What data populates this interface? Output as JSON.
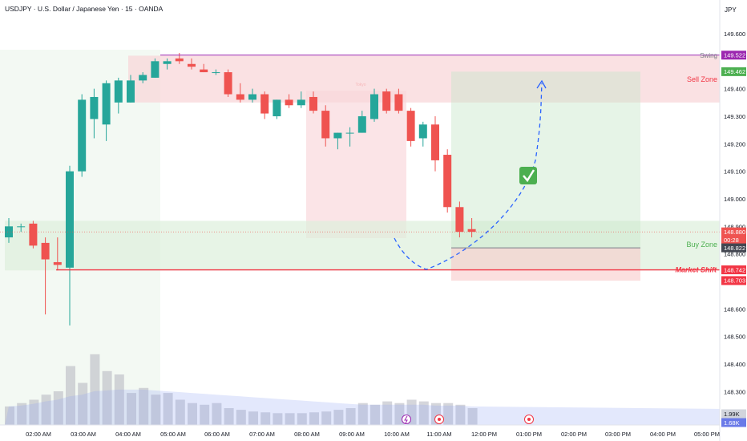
{
  "header": {
    "title": "USDJPY · U.S. Dollar / Japanese Yen · 15 · OANDA"
  },
  "currency_label": "JPY",
  "colors": {
    "up": "#26a69a",
    "down": "#ef5350",
    "sell_zone": "#f8d7d9",
    "buy_zone": "#ddefdc",
    "swing_line": "#9c27b0",
    "market_shift": "#f23645"
  },
  "chart_data": {
    "type": "candlestick",
    "ylim": [
      148.22,
      149.66
    ],
    "y_ticks": [
      "149.600",
      "149.400",
      "149.300",
      "149.200",
      "149.100",
      "149.000",
      "148.900",
      "148.800",
      "148.600",
      "148.500",
      "148.400",
      "148.300"
    ],
    "x_ticks": [
      "02:00 AM",
      "03:00 AM",
      "04:00 AM",
      "05:00 AM",
      "06:00 AM",
      "07:00 AM",
      "08:00 AM",
      "09:00 AM",
      "10:00 AM",
      "11:00 AM",
      "12:00 PM",
      "01:00 PM",
      "02:00 PM",
      "03:00 PM",
      "04:00 PM",
      "05:00 PM"
    ],
    "candles": [
      {
        "o": 148.86,
        "h": 148.93,
        "l": 148.84,
        "c": 148.9
      },
      {
        "o": 148.9,
        "h": 148.91,
        "l": 148.88,
        "c": 148.9
      },
      {
        "o": 148.91,
        "h": 148.92,
        "l": 148.82,
        "c": 148.83
      },
      {
        "o": 148.84,
        "h": 148.86,
        "l": 148.58,
        "c": 148.78
      },
      {
        "o": 148.77,
        "h": 148.86,
        "l": 148.74,
        "c": 148.76
      },
      {
        "o": 148.75,
        "h": 149.12,
        "l": 148.54,
        "c": 149.1
      },
      {
        "o": 149.1,
        "h": 149.38,
        "l": 149.08,
        "c": 149.36
      },
      {
        "o": 149.29,
        "h": 149.4,
        "l": 149.22,
        "c": 149.37
      },
      {
        "o": 149.27,
        "h": 149.43,
        "l": 149.21,
        "c": 149.42
      },
      {
        "o": 149.35,
        "h": 149.44,
        "l": 149.31,
        "c": 149.43
      },
      {
        "o": 149.35,
        "h": 149.45,
        "l": 149.35,
        "c": 149.43
      },
      {
        "o": 149.43,
        "h": 149.46,
        "l": 149.42,
        "c": 149.45
      },
      {
        "o": 149.44,
        "h": 149.51,
        "l": 149.44,
        "c": 149.5
      },
      {
        "o": 149.49,
        "h": 149.51,
        "l": 149.47,
        "c": 149.5
      },
      {
        "o": 149.51,
        "h": 149.53,
        "l": 149.49,
        "c": 149.5
      },
      {
        "o": 149.49,
        "h": 149.51,
        "l": 149.47,
        "c": 149.48
      },
      {
        "o": 149.47,
        "h": 149.49,
        "l": 149.46,
        "c": 149.46
      },
      {
        "o": 149.46,
        "h": 149.47,
        "l": 149.45,
        "c": 149.46
      },
      {
        "o": 149.46,
        "h": 149.47,
        "l": 149.37,
        "c": 149.38
      },
      {
        "o": 149.38,
        "h": 149.42,
        "l": 149.35,
        "c": 149.36
      },
      {
        "o": 149.36,
        "h": 149.4,
        "l": 149.35,
        "c": 149.38
      },
      {
        "o": 149.38,
        "h": 149.39,
        "l": 149.29,
        "c": 149.31
      },
      {
        "o": 149.3,
        "h": 149.36,
        "l": 149.29,
        "c": 149.36
      },
      {
        "o": 149.36,
        "h": 149.38,
        "l": 149.33,
        "c": 149.34
      },
      {
        "o": 149.34,
        "h": 149.39,
        "l": 149.33,
        "c": 149.36
      },
      {
        "o": 149.37,
        "h": 149.39,
        "l": 149.31,
        "c": 149.32
      },
      {
        "o": 149.32,
        "h": 149.34,
        "l": 149.19,
        "c": 149.22
      },
      {
        "o": 149.22,
        "h": 149.24,
        "l": 149.18,
        "c": 149.24
      },
      {
        "o": 149.24,
        "h": 149.26,
        "l": 149.19,
        "c": 149.24
      },
      {
        "o": 149.24,
        "h": 149.32,
        "l": 149.24,
        "c": 149.3
      },
      {
        "o": 149.29,
        "h": 149.4,
        "l": 149.28,
        "c": 149.38
      },
      {
        "o": 149.39,
        "h": 149.4,
        "l": 149.31,
        "c": 149.32
      },
      {
        "o": 149.38,
        "h": 149.4,
        "l": 149.31,
        "c": 149.32
      },
      {
        "o": 149.32,
        "h": 149.33,
        "l": 149.19,
        "c": 149.21
      },
      {
        "o": 149.22,
        "h": 149.28,
        "l": 149.19,
        "c": 149.27
      },
      {
        "o": 149.27,
        "h": 149.3,
        "l": 149.1,
        "c": 149.14
      },
      {
        "o": 149.16,
        "h": 149.18,
        "l": 148.95,
        "c": 148.97
      },
      {
        "o": 148.97,
        "h": 148.99,
        "l": 148.86,
        "c": 148.88
      },
      {
        "o": 148.89,
        "h": 148.93,
        "l": 148.86,
        "c": 148.88
      }
    ],
    "volume": [
      22,
      26,
      30,
      36,
      40,
      70,
      50,
      84,
      64,
      60,
      38,
      44,
      36,
      38,
      30,
      26,
      24,
      26,
      20,
      18,
      16,
      15,
      14,
      14,
      14,
      15,
      16,
      18,
      20,
      26,
      24,
      28,
      26,
      30,
      28,
      26,
      26,
      24,
      20
    ],
    "volume_ma": [
      22,
      23,
      25,
      28,
      30,
      34,
      36,
      40,
      41,
      42,
      42,
      42,
      41,
      40,
      39,
      38,
      37,
      36,
      35,
      34,
      33,
      32,
      31,
      30,
      29,
      28,
      27,
      26,
      25,
      24,
      24,
      24,
      24,
      24,
      24,
      23,
      23,
      23,
      22
    ],
    "zones": {
      "sell_zone": {
        "label": "Sell Zone",
        "y_low": 149.35,
        "y_high": 149.52
      },
      "buy_zone": {
        "label": "Buy Zone",
        "y_low": 148.74,
        "y_high": 148.92
      },
      "tokyo_session": {
        "label": "Tokyo",
        "y_low": 148.86,
        "y_high": 149.4
      }
    },
    "levels": {
      "swing": {
        "label": "Swing",
        "price": "149.522",
        "value": 149.522
      },
      "market_shift": {
        "label": "Market Shift",
        "price": "148.742",
        "value": 148.742
      }
    },
    "position": {
      "target_price": "149.462",
      "target_value": 149.462,
      "entry_price": "148.822",
      "entry_value": 148.822,
      "stop_price": "148.703",
      "stop_value": 148.703
    },
    "current_price": {
      "price": "148.880",
      "value": 148.88,
      "countdown": "00:28"
    },
    "volume_labels": {
      "vol1": "1.99K",
      "vol2": "1.68K"
    }
  }
}
